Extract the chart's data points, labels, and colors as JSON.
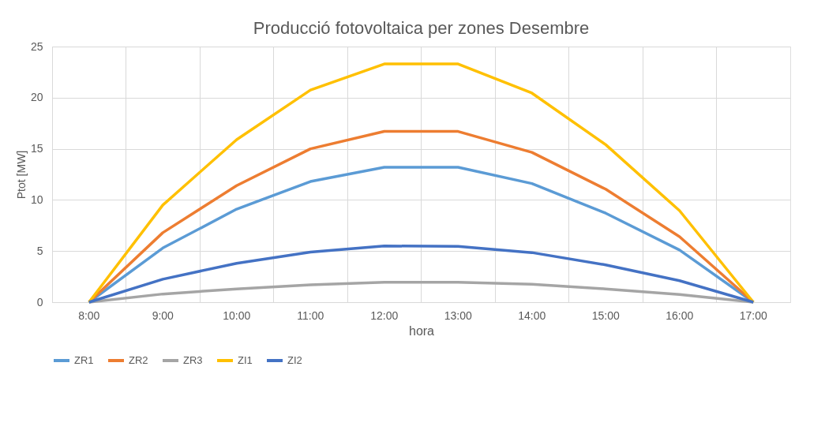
{
  "chart_data": {
    "type": "line",
    "title": "Producció fotovoltaica per zones Desembre",
    "xlabel": "hora",
    "ylabel": "Ptot [MW]",
    "categories": [
      "8:00",
      "9:00",
      "10:00",
      "11:00",
      "12:00",
      "13:00",
      "14:00",
      "15:00",
      "16:00",
      "17:00"
    ],
    "series": [
      {
        "name": "ZR1",
        "color": "#5b9bd5",
        "values": [
          0,
          5.3,
          9.1,
          11.8,
          13.2,
          13.2,
          11.6,
          8.7,
          5.1,
          0
        ]
      },
      {
        "name": "ZR2",
        "color": "#ed7d31",
        "values": [
          0,
          6.8,
          11.4,
          15.0,
          16.7,
          16.7,
          14.65,
          11.05,
          6.4,
          0
        ]
      },
      {
        "name": "ZR3",
        "color": "#a5a5a5",
        "values": [
          0,
          0.8,
          1.3,
          1.7,
          1.95,
          1.95,
          1.75,
          1.3,
          0.75,
          0
        ]
      },
      {
        "name": "ZI1",
        "color": "#ffc000",
        "values": [
          0,
          9.5,
          15.9,
          20.75,
          23.3,
          23.3,
          20.45,
          15.4,
          8.95,
          0
        ]
      },
      {
        "name": "ZI2",
        "color": "#4472c4",
        "values": [
          0,
          2.25,
          3.8,
          4.9,
          5.5,
          5.45,
          4.85,
          3.65,
          2.1,
          0
        ]
      }
    ],
    "ylim": [
      0,
      25
    ],
    "yticks": [
      0,
      5,
      10,
      15,
      20,
      25
    ],
    "grid": true,
    "legend": "bottom",
    "marker": "none",
    "line_style": "solid"
  }
}
